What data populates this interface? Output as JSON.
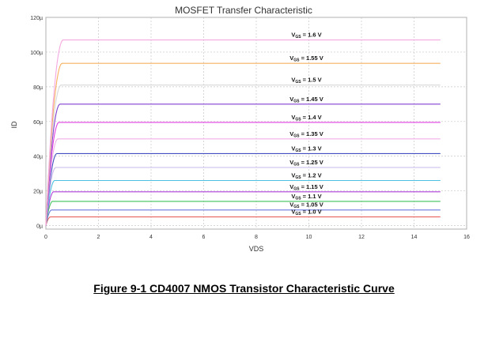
{
  "caption": "Figure 9-1 CD4007 NMOS Transistor Characteristic Curve",
  "chart_data": {
    "type": "line",
    "title": "MOSFET Transfer Characteristic",
    "xlabel": "VDS",
    "ylabel": "ID",
    "xlim": [
      0,
      16
    ],
    "ylim": [
      -2,
      120
    ],
    "xticks": [
      0,
      2,
      4,
      6,
      8,
      10,
      12,
      14,
      16
    ],
    "yticks": [
      0,
      20,
      40,
      60,
      80,
      100,
      120
    ],
    "ytick_labels": [
      "0µ",
      "20µ",
      "40µ",
      "60µ",
      "80µ",
      "100µ",
      "120µ"
    ],
    "grid": true,
    "label_prefix": "V",
    "label_subscript": "GS",
    "series": [
      {
        "name": "= 1.0 V",
        "vgs": 1.0,
        "id_sat": 5,
        "vsat": 0.18,
        "x_end": 15,
        "color": "#e8635f",
        "labeled": true
      },
      {
        "name": "= 1.05 V",
        "vgs": 1.05,
        "id_sat": 9,
        "vsat": 0.22,
        "x_end": 15,
        "color": "#6878e0",
        "labeled": true
      },
      {
        "name": "= 1.1 V",
        "vgs": 1.1,
        "id_sat": 14,
        "vsat": 0.26,
        "x_end": 15,
        "color": "#3ec25a",
        "labeled": true
      },
      {
        "name": "= 1.15 V",
        "vgs": 1.15,
        "id_sat": 19.5,
        "vsat": 0.3,
        "x_end": 15,
        "color": "#b040d8",
        "labeled": true
      },
      {
        "name": "= 1.2 V",
        "vgs": 1.2,
        "id_sat": 26,
        "vsat": 0.34,
        "x_end": 15,
        "color": "#4cc0e0",
        "labeled": true
      },
      {
        "name": "= 1.25 V",
        "vgs": 1.25,
        "id_sat": 33.5,
        "vsat": 0.38,
        "x_end": 15,
        "color": "#c8b8e8",
        "labeled": true
      },
      {
        "name": "= 1.3 V",
        "vgs": 1.3,
        "id_sat": 41.5,
        "vsat": 0.42,
        "x_end": 15,
        "color": "#4050c0",
        "labeled": true
      },
      {
        "name": "= 1.35 V",
        "vgs": 1.35,
        "id_sat": 50,
        "vsat": 0.46,
        "x_end": 15,
        "color": "#f0b0e8",
        "labeled": true
      },
      {
        "name": "= 1.4 V",
        "vgs": 1.4,
        "id_sat": 59.5,
        "vsat": 0.5,
        "x_end": 15,
        "color": "#e040e0",
        "labeled": true
      },
      {
        "name": "= 1.45 V",
        "vgs": 1.45,
        "id_sat": 70,
        "vsat": 0.54,
        "x_end": 15,
        "color": "#8040d0",
        "labeled": true
      },
      {
        "name": "= 1.5 V",
        "vgs": 1.5,
        "id_sat": 81,
        "vsat": 0.58,
        "x_end": 15,
        "color": "#d8d8d8",
        "labeled": true
      },
      {
        "name": "= 1.55 V",
        "vgs": 1.55,
        "id_sat": 93.5,
        "vsat": 0.62,
        "x_end": 15,
        "color": "#f5b060",
        "labeled": true
      },
      {
        "name": "= 1.6 V",
        "vgs": 1.6,
        "id_sat": 107,
        "vsat": 0.66,
        "x_end": 15,
        "color": "#f5a8e0",
        "labeled": true
      }
    ]
  }
}
